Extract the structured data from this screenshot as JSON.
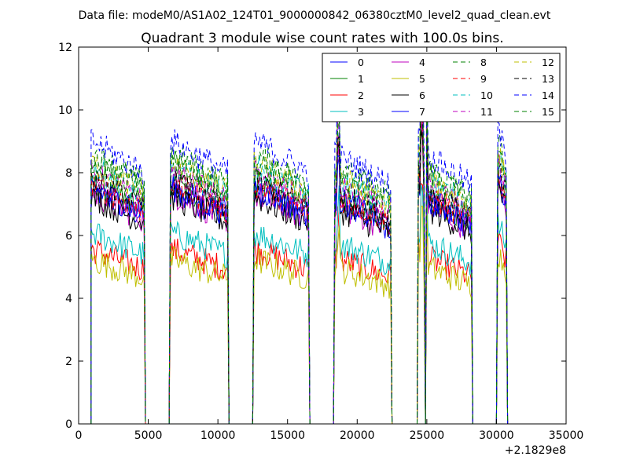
{
  "chart_data": {
    "type": "line",
    "suptitle": "Data file: modeM0/AS1A02_124T01_9000000842_06380cztM0_level2_quad_clean.evt",
    "title": "Quadrant 3 module wise count rates with 100.0s bins.",
    "xlabel": "",
    "ylabel": "",
    "xlim": [
      0,
      35000
    ],
    "ylim": [
      0,
      12
    ],
    "x_offset_label": "+2.1829e8",
    "x_ticks": [
      0,
      5000,
      10000,
      15000,
      20000,
      25000,
      30000,
      35000
    ],
    "y_ticks": [
      0,
      2,
      4,
      6,
      8,
      10,
      12
    ],
    "legend_position": "top-right",
    "legend_columns": 4,
    "grid": false,
    "bin_width": 100,
    "segments": [
      [
        900,
        4700
      ],
      [
        6600,
        10700
      ],
      [
        12600,
        16500
      ],
      [
        18400,
        22400
      ],
      [
        24400,
        24800
      ],
      [
        25000,
        28200
      ],
      [
        30100,
        30700
      ]
    ],
    "segment_factors": [
      1.0,
      1.0,
      1.0,
      0.95,
      1.05,
      0.95,
      1.05
    ],
    "spikes": [
      [
        18650,
        1.25
      ],
      [
        24650,
        1.35
      ],
      [
        24950,
        1.3
      ]
    ],
    "series": [
      {
        "name": "0",
        "color": "#0000ff",
        "dash": "solid",
        "level": 7.1
      },
      {
        "name": "1",
        "color": "#008000",
        "dash": "solid",
        "level": 7.3
      },
      {
        "name": "2",
        "color": "#ff0000",
        "dash": "solid",
        "level": 5.3
      },
      {
        "name": "3",
        "color": "#00bfbf",
        "dash": "solid",
        "level": 5.8
      },
      {
        "name": "4",
        "color": "#bf00bf",
        "dash": "solid",
        "level": 7.0
      },
      {
        "name": "5",
        "color": "#bfbf00",
        "dash": "solid",
        "level": 5.0
      },
      {
        "name": "6",
        "color": "#000000",
        "dash": "solid",
        "level": 6.9
      },
      {
        "name": "7",
        "color": "#0000ff",
        "dash": "solid",
        "level": 7.2
      },
      {
        "name": "8",
        "color": "#008000",
        "dash": "dashed",
        "level": 8.2
      },
      {
        "name": "9",
        "color": "#ff0000",
        "dash": "dashed",
        "level": 7.3
      },
      {
        "name": "10",
        "color": "#00bfbf",
        "dash": "dashed",
        "level": 7.8
      },
      {
        "name": "11",
        "color": "#bf00bf",
        "dash": "dashed",
        "level": 7.6
      },
      {
        "name": "12",
        "color": "#bfbf00",
        "dash": "dashed",
        "level": 7.9
      },
      {
        "name": "13",
        "color": "#000000",
        "dash": "dashed",
        "level": 7.4
      },
      {
        "name": "14",
        "color": "#0000ff",
        "dash": "dashed",
        "level": 8.6
      },
      {
        "name": "15",
        "color": "#008000",
        "dash": "dashed",
        "level": 8.0
      }
    ]
  }
}
